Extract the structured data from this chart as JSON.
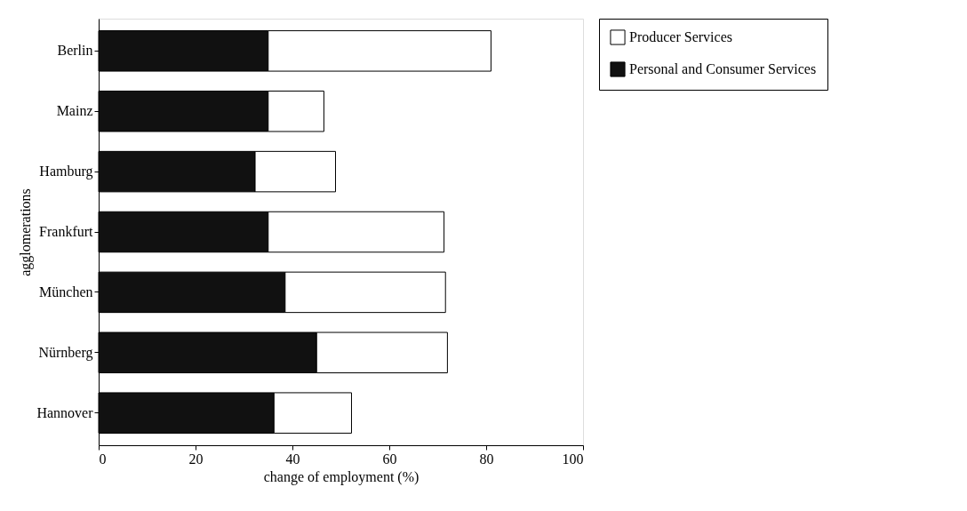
{
  "chart_data": {
    "type": "bar",
    "orientation": "horizontal",
    "stacked": true,
    "categories": [
      "Berlin",
      "Mainz",
      "Hamburg",
      "Frankfurt",
      "München",
      "Nürnberg",
      "Hannover"
    ],
    "series": [
      {
        "name": "Personal and Consumer Services",
        "color": "#111111",
        "values": [
          35,
          35,
          32.3,
          35,
          38.5,
          45,
          36.2
        ]
      },
      {
        "name": "Producer Services",
        "color": "#ffffff",
        "values": [
          46,
          11.5,
          16.6,
          36.3,
          33.1,
          27,
          16
        ]
      }
    ],
    "xlabel": "change of employment (%)",
    "ylabel": "agglomerations",
    "xlim": [
      0,
      100
    ],
    "xticks": [
      0,
      20,
      40,
      60,
      80,
      100
    ],
    "grid": false,
    "legend": "right"
  }
}
